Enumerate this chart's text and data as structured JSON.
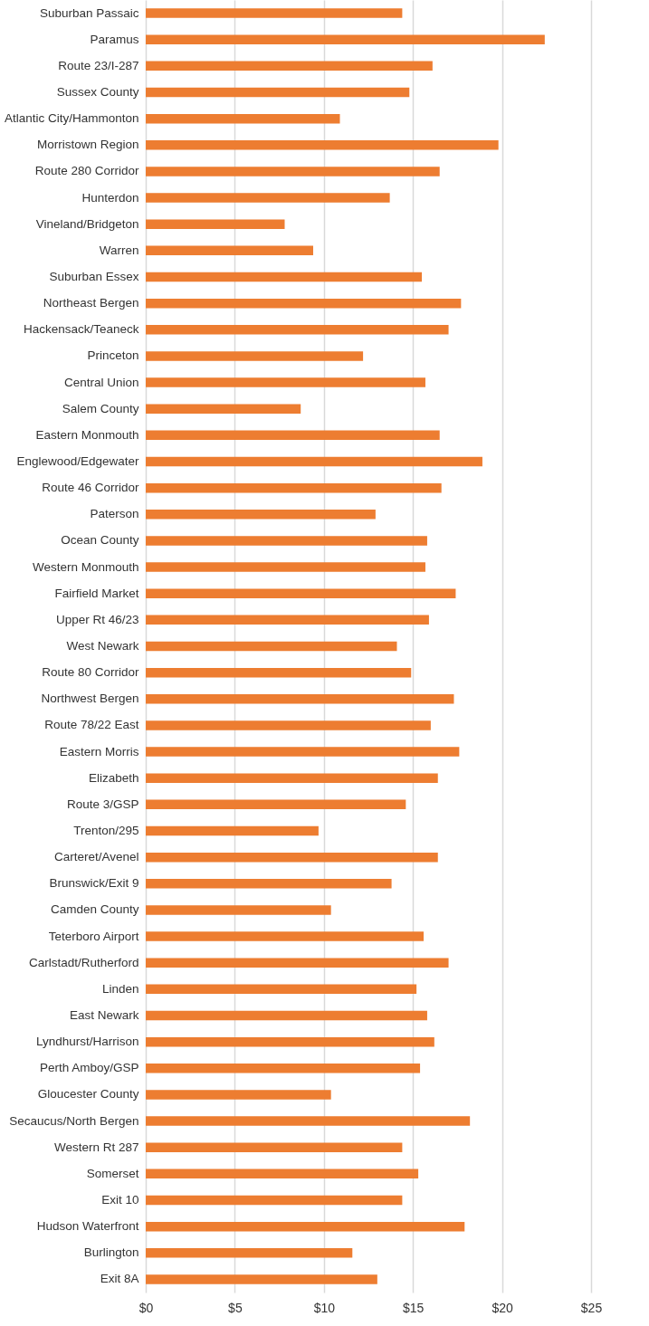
{
  "chart_data": {
    "type": "bar",
    "orientation": "horizontal",
    "categories": [
      "Suburban Passaic",
      "Paramus",
      "Route 23/I-287",
      "Sussex County",
      "Atlantic City/Hammonton",
      "Morristown Region",
      "Route 280 Corridor",
      "Hunterdon",
      "Vineland/Bridgeton",
      "Warren",
      "Suburban Essex",
      "Northeast Bergen",
      "Hackensack/Teaneck",
      "Princeton",
      "Central Union",
      "Salem County",
      "Eastern Monmouth",
      "Englewood/Edgewater",
      "Route 46 Corridor",
      "Paterson",
      "Ocean County",
      "Western Monmouth",
      "Fairfield Market",
      "Upper Rt 46/23",
      "West Newark",
      "Route 80 Corridor",
      "Northwest Bergen",
      "Route 78/22 East",
      "Eastern Morris",
      "Elizabeth",
      "Route 3/GSP",
      "Trenton/295",
      "Carteret/Avenel",
      "Brunswick/Exit 9",
      "Camden County",
      "Teterboro Airport",
      "Carlstadt/Rutherford",
      "Linden",
      "East Newark",
      "Lyndhurst/Harrison",
      "Perth Amboy/GSP",
      "Gloucester County",
      "Secaucus/North Bergen",
      "Western Rt 287",
      "Somerset",
      "Exit 10",
      "Hudson Waterfront",
      "Burlington",
      "Exit 8A"
    ],
    "values": [
      14.4,
      22.4,
      16.1,
      14.8,
      10.9,
      19.8,
      16.5,
      13.7,
      7.8,
      9.4,
      15.5,
      17.7,
      17.0,
      12.2,
      15.7,
      8.7,
      16.5,
      18.9,
      16.6,
      12.9,
      15.8,
      15.7,
      17.4,
      15.9,
      14.1,
      14.9,
      17.3,
      16.0,
      17.6,
      16.4,
      14.6,
      9.7,
      16.4,
      13.8,
      10.4,
      15.6,
      17.0,
      15.2,
      15.8,
      16.2,
      15.4,
      10.4,
      18.2,
      14.4,
      15.3,
      14.4,
      17.9,
      11.6,
      13.0
    ],
    "color": "#ed7d31",
    "xlim": [
      0,
      25
    ],
    "xticks": [
      {
        "value": 0,
        "label": "$0"
      },
      {
        "value": 5,
        "label": "$5"
      },
      {
        "value": 10,
        "label": "$10"
      },
      {
        "value": 15,
        "label": "$15"
      },
      {
        "value": 20,
        "label": "$20"
      },
      {
        "value": 25,
        "label": "$25"
      }
    ],
    "grid": "x"
  }
}
